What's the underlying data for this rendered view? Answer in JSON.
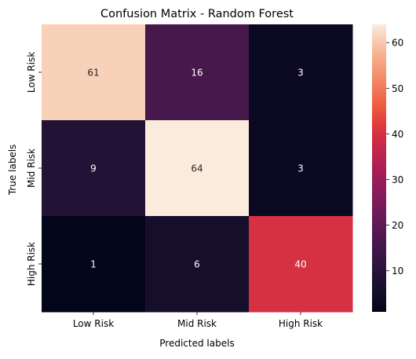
{
  "chart_data": {
    "type": "heatmap",
    "title": "Confusion Matrix - Random Forest",
    "xlabel": "Predicted labels",
    "ylabel": "True labels",
    "x_categories": [
      "Low Risk",
      "Mid Risk",
      "High Risk"
    ],
    "y_categories": [
      "Low Risk",
      "Mid Risk",
      "High Risk"
    ],
    "values": [
      [
        61,
        16,
        3
      ],
      [
        9,
        64,
        3
      ],
      [
        1,
        6,
        40
      ]
    ],
    "colorbar": {
      "min": 1,
      "max": 64,
      "ticks": [
        10,
        20,
        30,
        40,
        50,
        60
      ]
    },
    "colormap": "rocket",
    "grid": false
  }
}
